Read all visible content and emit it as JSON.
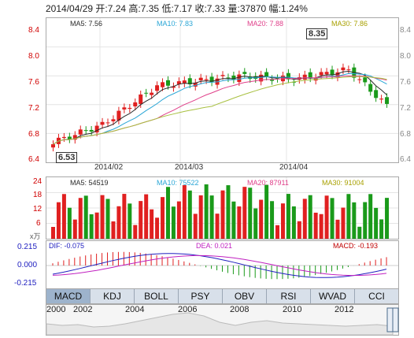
{
  "header": {
    "text": "2014/04/29 开:7.24 高:7.35 低:7.17 收:7.33 量:37870 幅:1.24%"
  },
  "price_panel": {
    "ma5": "MA5: 7.56",
    "ma10": "MA10: 7.83",
    "ma20": "MA20: 7.88",
    "ma30": "MA30: 7.86",
    "y_ticks": [
      "8.4",
      "8.0",
      "7.6",
      "7.2",
      "6.8",
      "6.4"
    ],
    "x_ticks": [
      "2014/02",
      "2014/03",
      "2014/04"
    ],
    "high_callout": "8.35",
    "low_callout": "6.53",
    "colors": {
      "up": "#e02020",
      "down": "#1a9a1a",
      "ma5": "#2a2a2a",
      "ma10": "#2aa6d6",
      "ma20": "#e0408a",
      "ma30": "#a8c040"
    }
  },
  "volume_panel": {
    "ma5": "MA5: 54519",
    "ma10": "MA10: 75522",
    "ma20": "MA20: 87911",
    "ma30": "MA30: 91004",
    "y_ticks": [
      "24",
      "18",
      "12",
      "6"
    ],
    "unit": "x万"
  },
  "macd_panel": {
    "dif": "DIF: -0.075",
    "dea": "DEA: 0.021",
    "macd": "MACD: -0.193",
    "y_ticks": [
      "0.215",
      "0.000",
      "-0.215"
    ]
  },
  "tabs": [
    {
      "label": "MACD",
      "active": true
    },
    {
      "label": "KDJ"
    },
    {
      "label": "BOLL"
    },
    {
      "label": "PSY"
    },
    {
      "label": "OBV"
    },
    {
      "label": "RSI"
    },
    {
      "label": "WVAD"
    },
    {
      "label": "CCI"
    }
  ],
  "navigator": {
    "years": [
      "2000",
      "2002",
      "2004",
      "2006",
      "2008",
      "2010",
      "2012"
    ]
  }
}
